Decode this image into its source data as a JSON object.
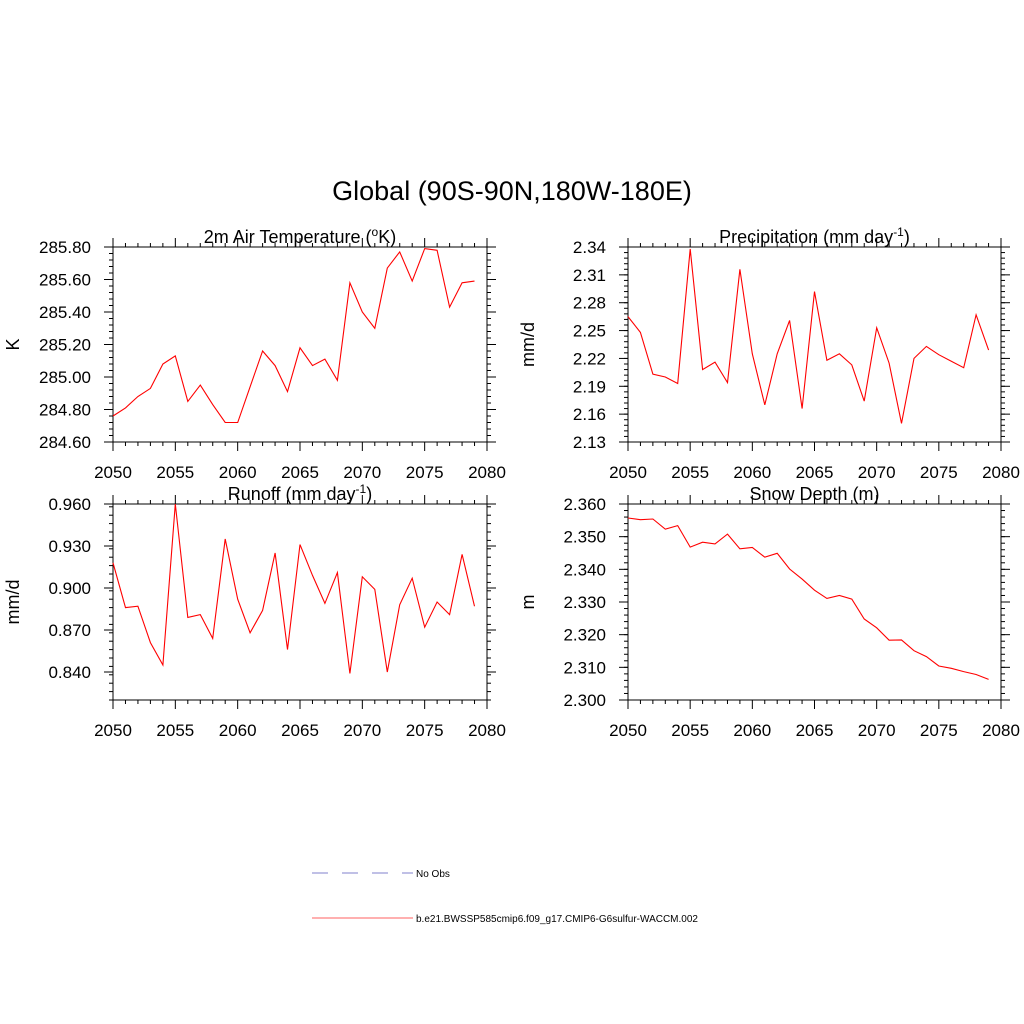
{
  "figure_title": "Global (90S-90N,180W-180E)",
  "colors": {
    "series": "#ff0000",
    "obs": "#9a9ad8",
    "axis": "#000000"
  },
  "legend": {
    "obs_label": "No Obs",
    "series_label": "b.e21.BWSSP585cmip6.f09_g17.CMIP6-G6sulfur-WACCM.002"
  },
  "chart_data": [
    {
      "type": "line",
      "title": "2m Air Temperature (",
      "title_sup": "o",
      "title_tail": "K)",
      "ylabel": "K",
      "xlim": [
        2050,
        2080
      ],
      "ylim": [
        284.6,
        285.8
      ],
      "xticks": [
        "2050",
        "2055",
        "2060",
        "2065",
        "2070",
        "2075",
        "2080"
      ],
      "yticks": [
        "284.60",
        "284.80",
        "285.00",
        "285.20",
        "285.40",
        "285.60",
        "285.80"
      ],
      "x": [
        2050,
        2051,
        2052,
        2053,
        2054,
        2055,
        2056,
        2057,
        2058,
        2059,
        2060,
        2061,
        2062,
        2063,
        2064,
        2065,
        2066,
        2067,
        2068,
        2069,
        2070,
        2071,
        2072,
        2073,
        2074,
        2075,
        2076,
        2077,
        2078,
        2079
      ],
      "series": [
        {
          "values": [
            284.76,
            284.81,
            284.88,
            284.93,
            285.08,
            285.13,
            284.85,
            284.95,
            284.83,
            284.72,
            284.72,
            284.94,
            285.16,
            285.07,
            284.91,
            285.18,
            285.07,
            285.11,
            284.98,
            285.58,
            285.4,
            285.3,
            285.67,
            285.77,
            285.59,
            285.79,
            285.78,
            285.43,
            285.58,
            285.59
          ]
        }
      ]
    },
    {
      "type": "line",
      "title": "Precipitation (mm day",
      "title_sup": "-1",
      "title_tail": ")",
      "ylabel": "mm/d",
      "xlim": [
        2050,
        2080
      ],
      "ylim": [
        2.13,
        2.34
      ],
      "xticks": [
        "2050",
        "2055",
        "2060",
        "2065",
        "2070",
        "2075",
        "2080"
      ],
      "yticks": [
        "2.13",
        "2.16",
        "2.19",
        "2.22",
        "2.25",
        "2.28",
        "2.31",
        "2.34"
      ],
      "x": [
        2050,
        2051,
        2052,
        2053,
        2054,
        2055,
        2056,
        2057,
        2058,
        2059,
        2060,
        2061,
        2062,
        2063,
        2064,
        2065,
        2066,
        2067,
        2068,
        2069,
        2070,
        2071,
        2072,
        2073,
        2074,
        2075,
        2076,
        2077,
        2078,
        2079
      ],
      "series": [
        {
          "values": [
            2.265,
            2.248,
            2.203,
            2.2,
            2.193,
            2.338,
            2.208,
            2.216,
            2.194,
            2.316,
            2.225,
            2.17,
            2.225,
            2.261,
            2.166,
            2.292,
            2.218,
            2.225,
            2.213,
            2.174,
            2.253,
            2.215,
            2.15,
            2.22,
            2.233,
            2.224,
            2.217,
            2.21,
            2.267,
            2.229
          ]
        }
      ]
    },
    {
      "type": "line",
      "title": "Runoff (mm day",
      "title_sup": "-1",
      "title_tail": ")",
      "ylabel": "mm/d",
      "xlim": [
        2050,
        2080
      ],
      "ylim": [
        0.82,
        0.96
      ],
      "xticks": [
        "2050",
        "2055",
        "2060",
        "2065",
        "2070",
        "2075",
        "2080"
      ],
      "yticks": [
        "0.840",
        "0.870",
        "0.900",
        "0.930",
        "0.960"
      ],
      "x": [
        2050,
        2051,
        2052,
        2053,
        2054,
        2055,
        2056,
        2057,
        2058,
        2059,
        2060,
        2061,
        2062,
        2063,
        2064,
        2065,
        2066,
        2067,
        2068,
        2069,
        2070,
        2071,
        2072,
        2073,
        2074,
        2075,
        2076,
        2077,
        2078,
        2079
      ],
      "series": [
        {
          "values": [
            0.918,
            0.886,
            0.887,
            0.861,
            0.845,
            0.96,
            0.879,
            0.881,
            0.864,
            0.935,
            0.892,
            0.868,
            0.884,
            0.925,
            0.856,
            0.931,
            0.909,
            0.889,
            0.911,
            0.839,
            0.908,
            0.899,
            0.84,
            0.888,
            0.907,
            0.872,
            0.89,
            0.881,
            0.924,
            0.887
          ]
        }
      ]
    },
    {
      "type": "line",
      "title": "Snow Depth (m)",
      "title_sup": "",
      "title_tail": "",
      "ylabel": "m",
      "xlim": [
        2050,
        2080
      ],
      "ylim": [
        2.3,
        2.36
      ],
      "xticks": [
        "2050",
        "2055",
        "2060",
        "2065",
        "2070",
        "2075",
        "2080"
      ],
      "yticks": [
        "2.300",
        "2.310",
        "2.320",
        "2.330",
        "2.340",
        "2.350",
        "2.360"
      ],
      "x": [
        2050,
        2051,
        2052,
        2053,
        2054,
        2055,
        2056,
        2057,
        2058,
        2059,
        2060,
        2061,
        2062,
        2063,
        2064,
        2065,
        2066,
        2067,
        2068,
        2069,
        2070,
        2071,
        2072,
        2073,
        2074,
        2075,
        2076,
        2077,
        2078,
        2079
      ],
      "series": [
        {
          "values": [
            2.3557,
            2.3552,
            2.3554,
            2.3523,
            2.3534,
            2.3468,
            2.3483,
            2.3478,
            2.3508,
            2.3463,
            2.3467,
            2.3437,
            2.3449,
            2.3401,
            2.337,
            2.3336,
            2.3311,
            2.332,
            2.3309,
            2.3248,
            2.3221,
            2.3183,
            2.3184,
            2.3151,
            2.3133,
            2.3104,
            2.3097,
            2.3087,
            2.3078,
            2.3063
          ]
        }
      ]
    }
  ]
}
